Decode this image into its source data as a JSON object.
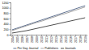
{
  "chart_data": {
    "type": "line",
    "categories": [
      "2004",
      "2005",
      "2006",
      "2007",
      "2008",
      "2009",
      "2010",
      "2011",
      "2012",
      "2013",
      "2014",
      "2015",
      "2016",
      "2017",
      "2018",
      "2019"
    ],
    "series": [
      {
        "name": "Per Day Journal",
        "color": "#1f3864",
        "values": [
          180,
          240,
          300,
          360,
          420,
          480,
          540,
          600,
          660,
          720,
          780,
          840,
          900,
          960,
          1020,
          1080
        ]
      },
      {
        "name": "Publishers",
        "color": "#7f7f7f",
        "values": [
          150,
          210,
          270,
          330,
          390,
          450,
          500,
          560,
          620,
          680,
          740,
          790,
          850,
          910,
          970,
          1030
        ]
      },
      {
        "name": "Journals",
        "color": "#000000",
        "values": [
          60,
          90,
          120,
          150,
          190,
          230,
          270,
          310,
          350,
          390,
          430,
          470,
          510,
          550,
          590,
          630
        ]
      }
    ],
    "ylim": [
      0,
      1200
    ],
    "yticks": [
      0,
      200,
      400,
      600,
      800,
      1000,
      1200
    ],
    "grid": false,
    "legend": "bottom"
  }
}
